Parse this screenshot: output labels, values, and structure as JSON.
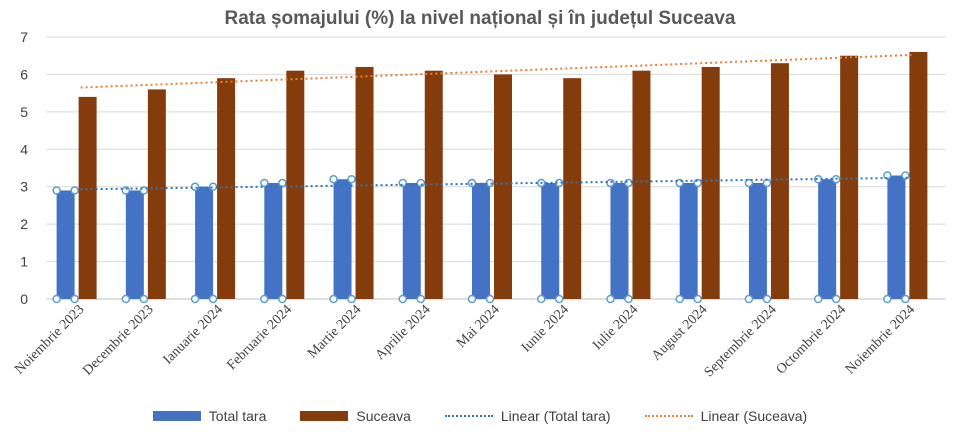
{
  "chart_data": {
    "type": "bar",
    "title": "Rata șomajului (%) la nivel național și în județul Suceava",
    "categories": [
      "Noiembrie 2023",
      "Decembrie 2023",
      "Ianuarie 2024",
      "Februarie 2024",
      "Martie 2024",
      "Aprilie 2024",
      "Mai 2024",
      "Iunie 2024",
      "Iulie 2024",
      "August 2024",
      "Septembrie 2024",
      "Octombrie 2024",
      "Noiembrie 2024"
    ],
    "series": [
      {
        "name": "Total tara",
        "color": "#4472C4",
        "values": [
          2.9,
          2.9,
          3.0,
          3.1,
          3.2,
          3.1,
          3.1,
          3.1,
          3.1,
          3.1,
          3.1,
          3.2,
          3.3
        ]
      },
      {
        "name": "Suceava",
        "color": "#843C0C",
        "values": [
          5.4,
          5.6,
          5.9,
          6.1,
          6.2,
          6.1,
          6.0,
          5.9,
          6.1,
          6.2,
          6.3,
          6.5,
          6.6
        ]
      }
    ],
    "trendlines": [
      {
        "name": "Linear (Total tara)",
        "series": "Total tara",
        "color": "#2E75B6",
        "start": 2.93,
        "end": 3.24
      },
      {
        "name": "Linear (Suceava)",
        "series": "Suceava",
        "color": "#ED7D31",
        "start": 5.65,
        "end": 6.52
      }
    ],
    "ylim": [
      0,
      7
    ],
    "yticks": [
      0,
      1,
      2,
      3,
      4,
      5,
      6,
      7
    ],
    "grid": true,
    "legend_position": "bottom"
  }
}
